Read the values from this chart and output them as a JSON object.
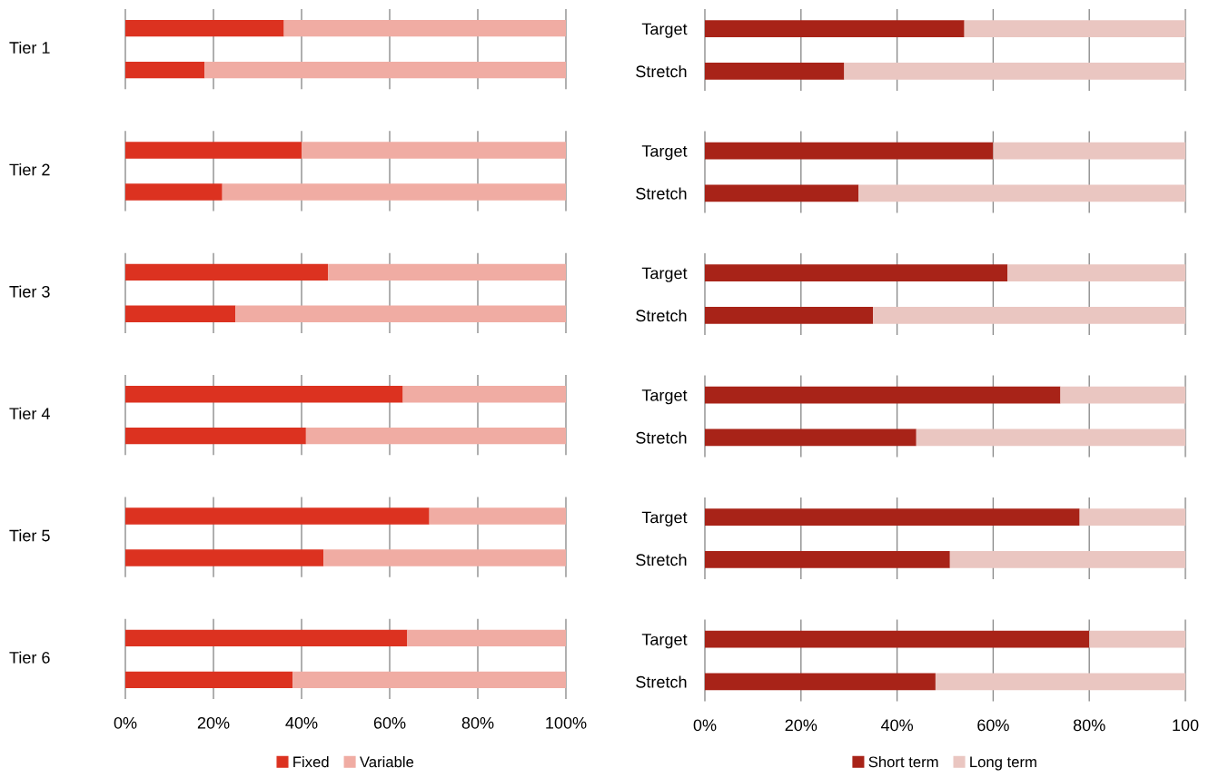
{
  "chart_data": [
    {
      "type": "bar",
      "orientation": "horizontal",
      "stacked": true,
      "categories": [
        null,
        null,
        null,
        null,
        null,
        null,
        null,
        null,
        null,
        null,
        null,
        null
      ],
      "annotations": [
        "Tier 1",
        "Tier 2",
        "Tier 3",
        "Tier 4",
        "Tier 5",
        "Tier 6"
      ],
      "series": [
        {
          "name": "Fixed",
          "color": "#dc3220",
          "values": [
            36,
            18,
            40,
            22,
            46,
            25,
            63,
            41,
            69,
            45,
            64,
            38
          ]
        },
        {
          "name": "Variable",
          "color": "#f0aca3",
          "values": [
            64,
            82,
            60,
            78,
            54,
            75,
            37,
            59,
            31,
            55,
            36,
            62
          ]
        }
      ],
      "xlim": [
        0,
        100
      ],
      "xticks": [
        {
          "value": 0,
          "label": "0%"
        },
        {
          "value": 20,
          "label": "20%"
        },
        {
          "value": 40,
          "label": "40%"
        },
        {
          "value": 60,
          "label": "60%"
        },
        {
          "value": 80,
          "label": "80%"
        },
        {
          "value": 100,
          "label": "100%"
        }
      ],
      "grid": "x",
      "tick_labels": "x",
      "legend": "bottom"
    },
    {
      "type": "bar",
      "orientation": "horizontal",
      "stacked": true,
      "categories": [
        "Target",
        "Stretch"
      ],
      "series": [
        {
          "color": "#a82318",
          "values": [
            54,
            29
          ]
        },
        {
          "color": "#eac6c1",
          "values": [
            46,
            71
          ]
        }
      ],
      "xlim": [
        0,
        100
      ],
      "xticks": [
        0,
        20,
        40,
        60,
        80,
        100
      ],
      "grid": "x",
      "tick_labels": "y"
    },
    {
      "type": "bar",
      "orientation": "horizontal",
      "stacked": true,
      "categories": [
        "Target",
        "Stretch"
      ],
      "series": [
        {
          "color": "#a82318",
          "values": [
            60,
            32
          ]
        },
        {
          "color": "#eac6c1",
          "values": [
            40,
            68
          ]
        }
      ],
      "xlim": [
        0,
        100
      ],
      "xticks": [
        0,
        20,
        40,
        60,
        80,
        100
      ],
      "grid": "x",
      "tick_labels": "y"
    },
    {
      "type": "bar",
      "orientation": "horizontal",
      "stacked": true,
      "categories": [
        "Target",
        "Stretch"
      ],
      "series": [
        {
          "color": "#a82318",
          "values": [
            63,
            35
          ]
        },
        {
          "color": "#eac6c1",
          "values": [
            37,
            65
          ]
        }
      ],
      "xlim": [
        0,
        100
      ],
      "xticks": [
        0,
        20,
        40,
        60,
        80,
        100
      ],
      "grid": "x",
      "tick_labels": "y"
    },
    {
      "type": "bar",
      "orientation": "horizontal",
      "stacked": true,
      "categories": [
        "Target",
        "Stretch"
      ],
      "series": [
        {
          "color": "#a82318",
          "values": [
            74,
            44
          ]
        },
        {
          "color": "#eac6c1",
          "values": [
            26,
            56
          ]
        }
      ],
      "xlim": [
        0,
        100
      ],
      "xticks": [
        0,
        20,
        40,
        60,
        80,
        100
      ],
      "grid": "x",
      "tick_labels": "y"
    },
    {
      "type": "bar",
      "orientation": "horizontal",
      "stacked": true,
      "categories": [
        "Target",
        "Stretch"
      ],
      "series": [
        {
          "color": "#a82318",
          "values": [
            78,
            51
          ]
        },
        {
          "color": "#eac6c1",
          "values": [
            22,
            49
          ]
        }
      ],
      "xlim": [
        0,
        100
      ],
      "xticks": [
        0,
        20,
        40,
        60,
        80,
        100
      ],
      "grid": "x",
      "tick_labels": "y"
    },
    {
      "type": "bar",
      "orientation": "horizontal",
      "stacked": true,
      "categories": [
        "Target",
        "Stretch"
      ],
      "series": [
        {
          "name": "Short term",
          "color": "#a82318",
          "values": [
            80,
            48
          ]
        },
        {
          "name": "Long term",
          "color": "#eac6c1",
          "values": [
            20,
            52
          ]
        }
      ],
      "xlim": [
        0,
        100
      ],
      "xticks": [
        {
          "value": 0,
          "label": "0%"
        },
        {
          "value": 20,
          "label": "20%"
        },
        {
          "value": 40,
          "label": "40%"
        },
        {
          "value": 60,
          "label": "60%"
        },
        {
          "value": 80,
          "label": "80%"
        },
        {
          "value": 100,
          "label": "100"
        }
      ],
      "grid": "x",
      "legend": "bottom"
    }
  ]
}
